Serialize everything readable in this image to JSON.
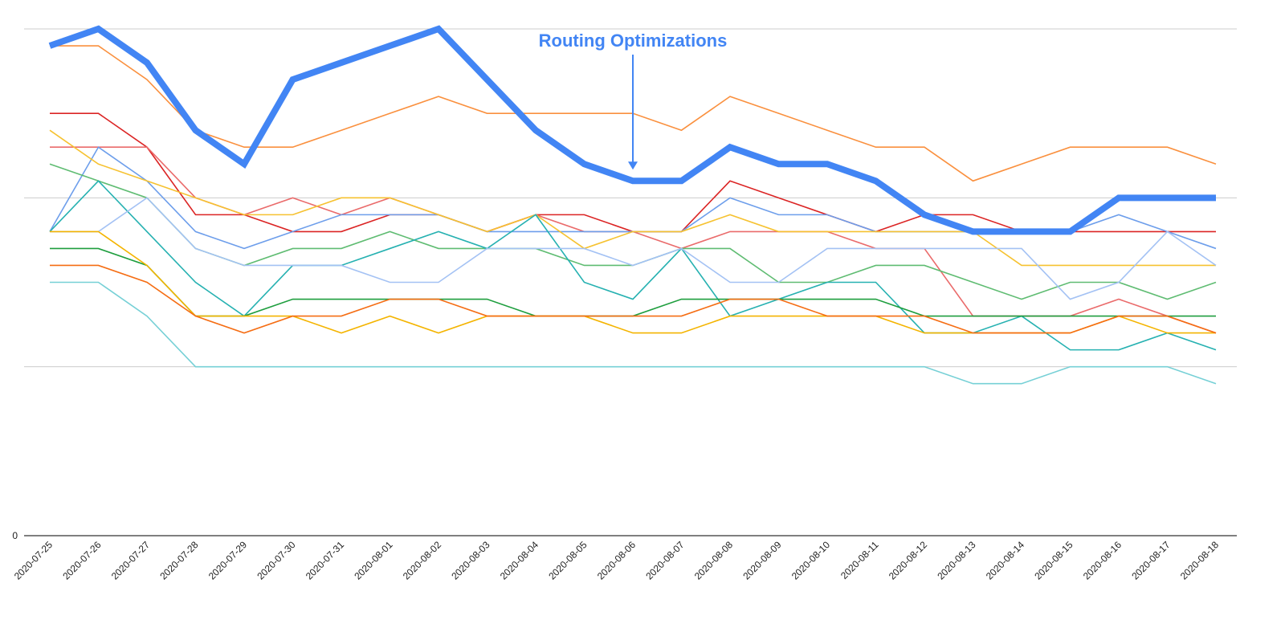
{
  "chart_data": {
    "type": "line",
    "title": "",
    "xlabel": "",
    "ylabel": "",
    "ylim": [
      0,
      30
    ],
    "y_ticks": [
      {
        "value": 0,
        "label": "0"
      },
      {
        "value": 10,
        "label": ""
      },
      {
        "value": 20,
        "label": ""
      },
      {
        "value": 30,
        "label": ""
      }
    ],
    "grid": true,
    "legend": "none",
    "categories": [
      "2020-07-25",
      "2020-07-26",
      "2020-07-27",
      "2020-07-28",
      "2020-07-29",
      "2020-07-30",
      "2020-07-31",
      "2020-08-01",
      "2020-08-02",
      "2020-08-03",
      "2020-08-04",
      "2020-08-05",
      "2020-08-06",
      "2020-08-07",
      "2020-08-08",
      "2020-08-09",
      "2020-08-10",
      "2020-08-11",
      "2020-08-12",
      "2020-08-13",
      "2020-08-14",
      "2020-08-15",
      "2020-08-16",
      "2020-08-17",
      "2020-08-18"
    ],
    "highlight_color": "#4285f4",
    "series": [
      {
        "color": "#4285f4",
        "highlight": true,
        "values": [
          29,
          30,
          28,
          24,
          22,
          27,
          28,
          29,
          30,
          27,
          24,
          22,
          21,
          21,
          23,
          22,
          22,
          21,
          19,
          18,
          18,
          18,
          20,
          20,
          20
        ]
      },
      {
        "color": "#fa903e",
        "values": [
          29,
          29,
          27,
          24,
          23,
          23,
          24,
          25,
          26,
          25,
          25,
          25,
          25,
          24,
          26,
          25,
          24,
          23,
          23,
          21,
          22,
          23,
          23,
          23,
          22
        ]
      },
      {
        "color": "#db2424",
        "values": [
          25,
          25,
          23,
          19,
          19,
          18,
          18,
          19,
          19,
          18,
          19,
          19,
          18,
          18,
          21,
          20,
          19,
          18,
          19,
          19,
          18,
          18,
          18,
          18,
          18
        ]
      },
      {
        "color": "#ea6b6b",
        "values": [
          23,
          23,
          23,
          20,
          19,
          20,
          19,
          20,
          19,
          18,
          19,
          18,
          18,
          17,
          18,
          18,
          18,
          17,
          17,
          13,
          13,
          13,
          14,
          13,
          12
        ]
      },
      {
        "color": "#6d9eeb",
        "values": [
          18,
          23,
          21,
          18,
          17,
          18,
          19,
          19,
          19,
          18,
          18,
          18,
          18,
          18,
          20,
          19,
          19,
          18,
          18,
          18,
          18,
          18,
          19,
          18,
          17
        ]
      },
      {
        "color": "#f6c231",
        "values": [
          24,
          22,
          21,
          20,
          19,
          19,
          20,
          20,
          19,
          18,
          19,
          17,
          18,
          18,
          19,
          18,
          18,
          18,
          18,
          18,
          16,
          16,
          16,
          16,
          16
        ]
      },
      {
        "color": "#5fbc72",
        "values": [
          22,
          21,
          20,
          17,
          16,
          17,
          17,
          18,
          17,
          17,
          17,
          16,
          16,
          17,
          17,
          15,
          15,
          16,
          16,
          15,
          14,
          15,
          15,
          14,
          15
        ]
      },
      {
        "color": "#26b1b1",
        "values": [
          18,
          21,
          18,
          15,
          13,
          16,
          16,
          17,
          18,
          17,
          19,
          15,
          14,
          17,
          13,
          14,
          15,
          15,
          12,
          12,
          13,
          11,
          11,
          12,
          11
        ]
      },
      {
        "color": "#a4c2f4",
        "values": [
          18,
          18,
          20,
          17,
          16,
          16,
          16,
          15,
          15,
          17,
          17,
          17,
          16,
          17,
          15,
          15,
          17,
          17,
          17,
          17,
          17,
          14,
          15,
          18,
          16
        ]
      },
      {
        "color": "#1e9e3e",
        "values": [
          17,
          17,
          16,
          13,
          13,
          14,
          14,
          14,
          14,
          14,
          13,
          13,
          13,
          14,
          14,
          14,
          14,
          14,
          13,
          13,
          13,
          13,
          13,
          13,
          13
        ]
      },
      {
        "color": "#f4b400",
        "values": [
          18,
          18,
          16,
          13,
          13,
          13,
          12,
          13,
          12,
          13,
          13,
          13,
          12,
          12,
          13,
          13,
          13,
          13,
          12,
          12,
          12,
          12,
          13,
          12,
          12
        ]
      },
      {
        "color": "#f56d13",
        "values": [
          16,
          16,
          15,
          13,
          12,
          13,
          13,
          14,
          14,
          13,
          13,
          13,
          13,
          13,
          14,
          14,
          13,
          13,
          13,
          12,
          12,
          12,
          13,
          13,
          12
        ]
      },
      {
        "color": "#76d0d6",
        "values": [
          15,
          15,
          13,
          10,
          10,
          10,
          10,
          10,
          10,
          10,
          10,
          10,
          10,
          10,
          10,
          10,
          10,
          10,
          10,
          9,
          9,
          10,
          10,
          10,
          9
        ]
      }
    ],
    "annotations": [
      {
        "text": "Routing Optimizations",
        "category": "2020-08-06",
        "color": "#4285f4"
      }
    ]
  }
}
